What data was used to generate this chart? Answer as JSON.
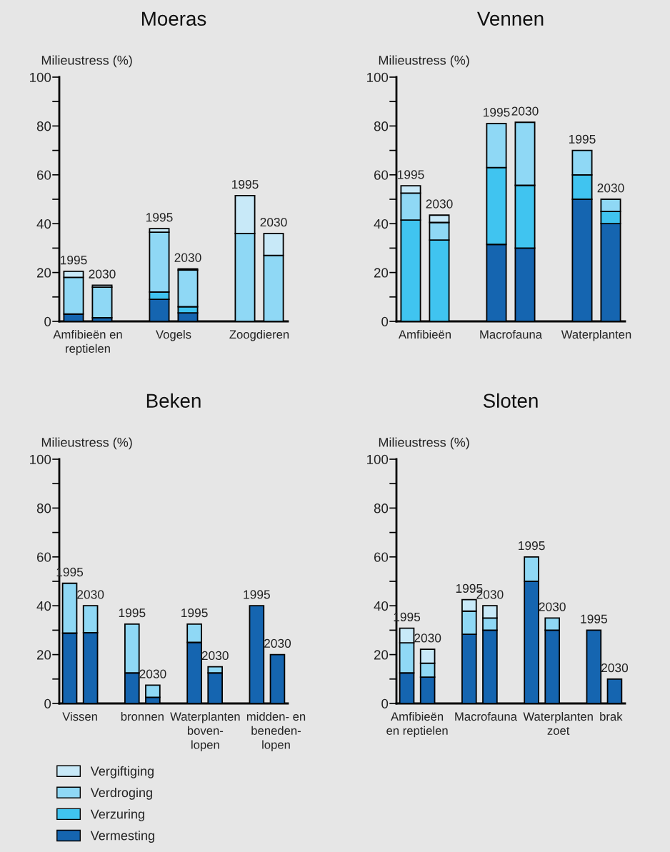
{
  "chart_data": [
    {
      "type": "bar",
      "stacked": true,
      "title": "Moeras",
      "ylabel": "Milieustress (%)",
      "categories": [
        null,
        null,
        null,
        null,
        null,
        null,
        null,
        null
      ],
      "annotations": [
        "Amfibieën en\nreptielen",
        "Vogels",
        "Zoogdieren",
        "1995",
        "2030",
        "1995",
        "2030",
        "1995",
        "2030"
      ],
      "ylim": [
        0,
        100
      ],
      "yticks": [
        0,
        {
          "value": 10,
          "label": null
        },
        20,
        {
          "value": 30,
          "label": null
        },
        40,
        {
          "value": 50,
          "label": null
        },
        60,
        {
          "value": 70,
          "label": null
        },
        80,
        {
          "value": 90,
          "label": null
        },
        100
      ],
      "grid": false,
      "legend": false,
      "series": [
        {
          "color": "#1565b0",
          "values": [
            3,
            1.5,
            null,
            9,
            3.5,
            null,
            null,
            null
          ]
        },
        {
          "color": "#40c4f0",
          "values": [
            null,
            null,
            null,
            3,
            2.5,
            null,
            null,
            null
          ]
        },
        {
          "color": "#8fd8f5",
          "values": [
            15,
            12.5,
            null,
            24.5,
            15,
            null,
            36,
            27
          ]
        },
        {
          "color": "#c8e9f8",
          "values": [
            2.5,
            0.8,
            null,
            1.5,
            0.5,
            null,
            15.5,
            9
          ]
        }
      ]
    },
    {
      "type": "bar",
      "stacked": true,
      "title": "Vennen",
      "ylabel": "Milieustress (%)",
      "categories": [
        null,
        null,
        null,
        null,
        null,
        null,
        null,
        null
      ],
      "annotations": [
        "Amfibieën",
        "Macrofauna",
        "Waterplanten",
        "1995",
        "2030",
        "1995",
        "2030",
        "1995",
        "2030"
      ],
      "ylim": [
        0,
        100
      ],
      "yticks": [
        0,
        {
          "value": 10,
          "label": null
        },
        20,
        {
          "value": 30,
          "label": null
        },
        40,
        {
          "value": 50,
          "label": null
        },
        60,
        {
          "value": 70,
          "label": null
        },
        80,
        {
          "value": 90,
          "label": null
        },
        100
      ],
      "grid": false,
      "legend": false,
      "series": [
        {
          "color": "#1565b0",
          "values": [
            null,
            null,
            null,
            31.5,
            30,
            null,
            50,
            40
          ]
        },
        {
          "color": "#40c4f0",
          "values": [
            41.5,
            33.3,
            null,
            31.5,
            25.7,
            null,
            10,
            5
          ]
        },
        {
          "color": "#8fd8f5",
          "values": [
            11,
            7.2,
            null,
            18,
            25.8,
            null,
            10,
            5
          ]
        },
        {
          "color": "#c8e9f8",
          "values": [
            3,
            3,
            null,
            null,
            null,
            null,
            null,
            null
          ]
        }
      ]
    },
    {
      "type": "bar",
      "stacked": true,
      "title": "Beken",
      "ylabel": "Milieustress (%)",
      "categories": [
        null,
        null,
        null,
        null,
        null,
        null,
        null,
        null,
        null,
        null,
        null
      ],
      "annotations": [
        "Vissen",
        "bronnen",
        "Waterplanten\nboven-\nlopen",
        "midden- en\nbeneden-\nlopen",
        "1995",
        "2030",
        "1995",
        "2030",
        "1995",
        "2030",
        "1995",
        "2030"
      ],
      "ylim": [
        0,
        100
      ],
      "yticks": [
        0,
        {
          "value": 10,
          "label": null
        },
        20,
        {
          "value": 30,
          "label": null
        },
        40,
        {
          "value": 50,
          "label": null
        },
        60,
        {
          "value": 70,
          "label": null
        },
        80,
        {
          "value": 90,
          "label": null
        },
        100
      ],
      "grid": false,
      "legend": "bottom",
      "series": [
        {
          "name": "Vermesting",
          "color": "#1565b0",
          "values": [
            28.8,
            29,
            null,
            12.5,
            2.5,
            null,
            25,
            12.5,
            null,
            40,
            20
          ]
        },
        {
          "name": "Verzuring",
          "color": "#40c4f0",
          "values": [
            null,
            null,
            null,
            null,
            null,
            null,
            null,
            null,
            null,
            null,
            null
          ]
        },
        {
          "name": "Verdroging",
          "color": "#8fd8f5",
          "values": [
            20.4,
            11,
            null,
            20,
            5,
            null,
            7.5,
            2.5,
            null,
            null,
            null
          ]
        },
        {
          "name": "Vergiftiging",
          "color": "#c8e9f8",
          "values": [
            null,
            null,
            null,
            null,
            null,
            null,
            null,
            null,
            null,
            null,
            null
          ]
        }
      ]
    },
    {
      "type": "bar",
      "stacked": true,
      "title": "Sloten",
      "ylabel": "Milieustress (%)",
      "categories": [
        null,
        null,
        null,
        null,
        null,
        null,
        null,
        null,
        null,
        null,
        null
      ],
      "annotations": [
        "Amfibieën\nen reptielen",
        "Macrofauna",
        "Waterplanten\nzoet",
        "brak",
        "1995",
        "2030",
        "1995",
        "2030",
        "1995",
        "2030",
        "1995",
        "2030"
      ],
      "ylim": [
        0,
        100
      ],
      "yticks": [
        0,
        {
          "value": 10,
          "label": null
        },
        20,
        {
          "value": 30,
          "label": null
        },
        40,
        {
          "value": 50,
          "label": null
        },
        60,
        {
          "value": 70,
          "label": null
        },
        80,
        {
          "value": 90,
          "label": null
        },
        100
      ],
      "grid": false,
      "legend": false,
      "series": [
        {
          "color": "#1565b0",
          "values": [
            12.5,
            10.8,
            null,
            28.3,
            30,
            null,
            50,
            30,
            null,
            30,
            10
          ]
        },
        {
          "color": "#40c4f0",
          "values": [
            null,
            null,
            null,
            null,
            null,
            null,
            null,
            null,
            null,
            null,
            null
          ]
        },
        {
          "color": "#8fd8f5",
          "values": [
            12.3,
            5.7,
            null,
            9.5,
            5,
            null,
            10,
            5,
            null,
            null,
            null
          ]
        },
        {
          "color": "#c8e9f8",
          "values": [
            6,
            5.7,
            null,
            4.7,
            5,
            null,
            null,
            null,
            null,
            null,
            null
          ]
        }
      ]
    }
  ]
}
